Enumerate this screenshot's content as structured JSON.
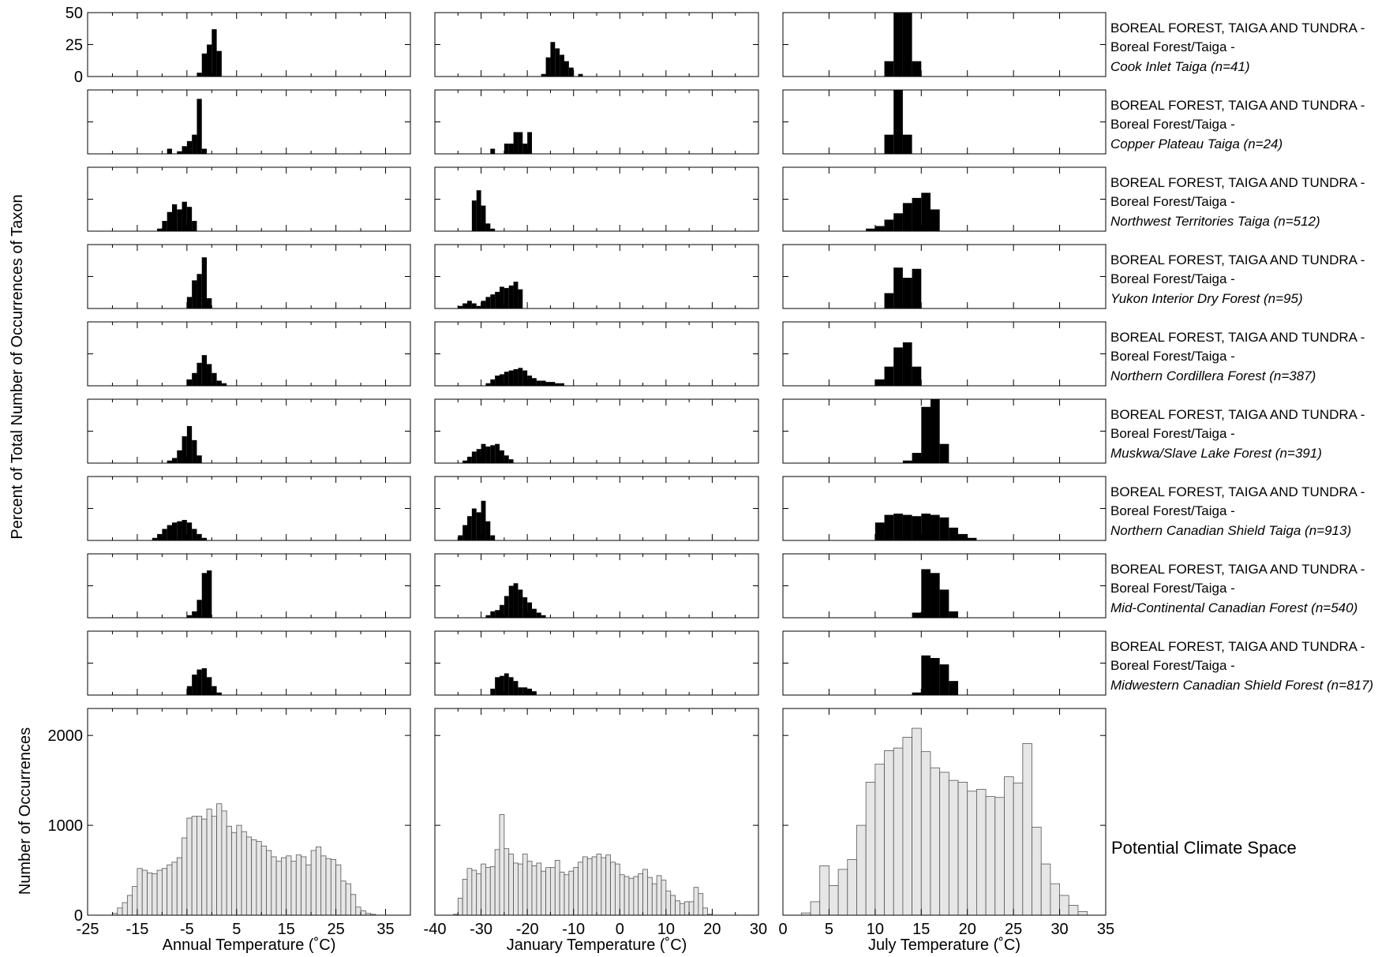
{
  "figure": {
    "ylabel_top": "Percent of Total Number of Occurrences of Taxon",
    "ylabel_bottom": "Number of Occurrences",
    "potential_label": "Potential Climate Space",
    "bar_fill_taxon": "#000000",
    "bar_fill_climate": "#e6e6e6",
    "bar_stroke_climate": "#555555"
  },
  "columns": [
    {
      "xlabel": "Annual Temperature (˚C)",
      "xlim": [
        -25,
        40
      ],
      "xticks": [
        -25,
        -15,
        -5,
        5,
        15,
        25,
        35
      ],
      "minor": [
        -20,
        -10,
        0,
        10,
        20,
        30
      ],
      "binw": 1
    },
    {
      "xlabel": "January Temperature (˚C)",
      "xlim": [
        -40,
        30
      ],
      "xticks": [
        -40,
        -30,
        -20,
        -10,
        0,
        10,
        20,
        30
      ],
      "minor": [
        -35,
        -25,
        -15,
        -5,
        5,
        15,
        25
      ],
      "binw": 1
    },
    {
      "xlabel": "July Temperature (˚C)",
      "xlim": [
        0,
        35
      ],
      "xticks": [
        0,
        5,
        10,
        15,
        20,
        25,
        30,
        35
      ],
      "minor": [],
      "binw": 1
    }
  ],
  "chart_data": {
    "type": "bar",
    "ylim_percent": [
      0,
      50
    ],
    "yticks_percent": [
      0,
      25,
      50
    ],
    "ylim_count": [
      0,
      2300
    ],
    "yticks_count": [
      0,
      1000,
      2000
    ],
    "panels": [
      {
        "line1": "BOREAL FOREST, TAIGA AND TUNDRA -",
        "line2": "Boreal Forest/Taiga -",
        "region": "Cook Inlet Taiga (n=41)",
        "annual": {
          "start": -3,
          "values": [
            3,
            18,
            25,
            37,
            20
          ]
        },
        "january": {
          "start": -17,
          "values": [
            2,
            15,
            27,
            22,
            17,
            12,
            7,
            0,
            2
          ]
        },
        "july": {
          "start": 11,
          "values": [
            12,
            50,
            50,
            12
          ]
        }
      },
      {
        "line1": "BOREAL FOREST, TAIGA AND TUNDRA -",
        "line2": "Boreal Forest/Taiga -",
        "region": "Copper Plateau Taiga (n=24)",
        "annual": {
          "start": -9,
          "values": [
            4,
            0,
            2,
            6,
            10,
            15,
            43,
            4
          ]
        },
        "january": {
          "start": -28,
          "values": [
            4,
            0,
            0,
            8,
            8,
            17,
            17,
            8,
            17
          ]
        },
        "july": {
          "start": 11,
          "values": [
            15,
            50,
            15
          ]
        }
      },
      {
        "line1": "BOREAL FOREST, TAIGA AND TUNDRA -",
        "line2": "Boreal Forest/Taiga -",
        "region": "Northwest Territories Taiga (n=512)",
        "annual": {
          "start": -11,
          "values": [
            2,
            8,
            15,
            21,
            17,
            23,
            19,
            8
          ]
        },
        "january": {
          "start": -32,
          "values": [
            24,
            32,
            20,
            6,
            2
          ]
        },
        "july": {
          "start": 9,
          "values": [
            2,
            4,
            9,
            14,
            22,
            26,
            30,
            17
          ]
        }
      },
      {
        "line1": "BOREAL FOREST, TAIGA AND TUNDRA -",
        "line2": "Boreal Forest/Taiga -",
        "region": "Yukon Interior Dry Forest (n=95)",
        "annual": {
          "start": -5,
          "values": [
            9,
            22,
            27,
            40,
            8
          ]
        },
        "january": {
          "start": -35,
          "values": [
            2,
            4,
            6,
            4,
            2,
            6,
            9,
            11,
            13,
            17,
            16,
            18,
            21,
            15
          ]
        },
        "july": {
          "start": 11,
          "values": [
            12,
            32,
            24,
            31
          ]
        }
      },
      {
        "line1": "BOREAL FOREST, TAIGA AND TUNDRA -",
        "line2": "Boreal Forest/Taiga -",
        "region": "Northern Cordillera Forest (n=387)",
        "annual": {
          "start": -5,
          "values": [
            5,
            10,
            18,
            24,
            17,
            10,
            4,
            2
          ]
        },
        "january": {
          "start": -29,
          "values": [
            2,
            5,
            8,
            9,
            11,
            12,
            13,
            14,
            12,
            8,
            6,
            4,
            4,
            3,
            3,
            2,
            2
          ]
        },
        "july": {
          "start": 10,
          "values": [
            5,
            15,
            30,
            34,
            15
          ]
        }
      },
      {
        "line1": "BOREAL FOREST, TAIGA AND TUNDRA -",
        "line2": "Boreal Forest/Taiga -",
        "region": "Muskwa/Slave Lake Forest (n=391)",
        "annual": {
          "start": -9,
          "values": [
            2,
            4,
            10,
            21,
            29,
            18,
            6
          ]
        },
        "january": {
          "start": -34,
          "values": [
            2,
            5,
            9,
            11,
            15,
            13,
            14,
            15,
            10,
            6,
            3
          ]
        },
        "july": {
          "start": 13,
          "values": [
            2,
            8,
            44,
            50,
            15
          ]
        }
      },
      {
        "line1": "BOREAL FOREST, TAIGA AND TUNDRA -",
        "line2": "Boreal Forest/Taiga -",
        "region": "Northern Canadian Shield Taiga (n=913)",
        "annual": {
          "start": -12,
          "values": [
            2,
            5,
            9,
            12,
            14,
            15,
            16,
            14,
            9,
            5,
            2
          ]
        },
        "january": {
          "start": -35,
          "values": [
            4,
            12,
            19,
            25,
            22,
            31,
            15,
            4
          ]
        },
        "july": {
          "start": 10,
          "values": [
            14,
            20,
            21,
            20,
            19,
            21,
            20,
            18,
            10,
            5,
            2
          ]
        }
      },
      {
        "line1": "BOREAL FOREST, TAIGA AND TUNDRA -",
        "line2": "Boreal Forest/Taiga -",
        "region": "Mid-Continental Canadian Forest (n=540)",
        "annual": {
          "start": -5,
          "values": [
            2,
            5,
            14,
            35,
            37
          ]
        },
        "january": {
          "start": -29,
          "values": [
            2,
            5,
            6,
            10,
            17,
            25,
            27,
            22,
            16,
            12,
            7,
            4,
            2
          ]
        },
        "july": {
          "start": 14,
          "values": [
            4,
            38,
            35,
            22,
            5
          ]
        }
      },
      {
        "line1": "BOREAL FOREST, TAIGA AND TUNDRA -",
        "line2": "Boreal Forest/Taiga -",
        "region": "Midwestern Canadian Shield Forest (n=817)",
        "annual": {
          "start": -5,
          "values": [
            7,
            16,
            20,
            21,
            14,
            7,
            2
          ]
        },
        "january": {
          "start": -28,
          "values": [
            5,
            14,
            15,
            17,
            14,
            11,
            6,
            6,
            5,
            3
          ]
        },
        "july": {
          "start": 14,
          "values": [
            2,
            31,
            29,
            24,
            11
          ]
        }
      }
    ],
    "potential": {
      "annual": {
        "start": -20,
        "values": [
          20,
          80,
          140,
          220,
          320,
          520,
          500,
          470,
          460,
          500,
          520,
          560,
          590,
          640,
          860,
          1080,
          1100,
          1100,
          1070,
          1180,
          1100,
          1240,
          1160,
          990,
          920,
          1000,
          930,
          870,
          840,
          820,
          770,
          720,
          650,
          600,
          640,
          660,
          600,
          670,
          650,
          560,
          720,
          760,
          660,
          630,
          620,
          560,
          380,
          350,
          230,
          90,
          50,
          20,
          10
        ]
      },
      "january": {
        "start": -36,
        "values": [
          10,
          190,
          400,
          520,
          500,
          460,
          570,
          530,
          540,
          730,
          1120,
          740,
          680,
          580,
          570,
          680,
          600,
          550,
          580,
          490,
          530,
          530,
          610,
          480,
          450,
          490,
          530,
          590,
          650,
          630,
          650,
          680,
          640,
          670,
          590,
          570,
          450,
          430,
          410,
          430,
          460,
          510,
          420,
          350,
          440,
          390,
          270,
          220,
          160,
          130,
          150,
          150,
          310,
          240,
          80,
          10
        ]
      },
      "july": {
        "start": 2,
        "values": [
          25,
          150,
          550,
          330,
          510,
          620,
          1000,
          1480,
          1680,
          1830,
          1860,
          1980,
          2080,
          1820,
          1640,
          1590,
          1500,
          1480,
          1380,
          1400,
          1320,
          1310,
          1540,
          1470,
          1910,
          980,
          570,
          350,
          220,
          110,
          40
        ]
      }
    }
  }
}
